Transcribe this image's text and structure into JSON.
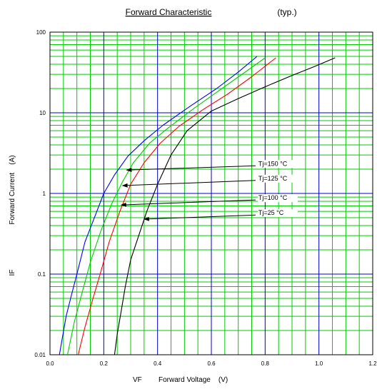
{
  "chart_data": {
    "type": "line",
    "title": "Forward Characteristic",
    "subtitle": "(typ.)",
    "xlabel_symbol": "VF",
    "xlabel": "Forward Voltage    (V)",
    "ylabel_symbol": "IF",
    "ylabel": "Forward Current    (A)",
    "xlim": [
      0.0,
      1.2
    ],
    "ylim": [
      0.01,
      100
    ],
    "yscale": "log",
    "grid": true,
    "x_ticks": [
      "0.0",
      "0.2",
      "0.4",
      "0.6",
      "0.8",
      "1.0",
      "1.2"
    ],
    "y_ticks": [
      "0.01",
      "0.1",
      "1",
      "10",
      "100"
    ],
    "colors": {
      "background": "#ffffff",
      "minor_grid": "#00cc00",
      "major_grid": "#0000cc",
      "arrow": "#000000"
    },
    "series": [
      {
        "name": "Tj=150  °C",
        "color": "#0000ff",
        "x": [
          0.035,
          0.06,
          0.08,
          0.1,
          0.13,
          0.17,
          0.2,
          0.24,
          0.29,
          0.35,
          0.42,
          0.52,
          0.62,
          0.7,
          0.77
        ],
        "y": [
          0.01,
          0.03,
          0.055,
          0.1,
          0.25,
          0.55,
          1.0,
          1.7,
          2.9,
          4.5,
          7.0,
          12,
          20,
          32,
          50
        ]
      },
      {
        "name": "Tj=125  °C",
        "color": "#00cc00",
        "x": [
          0.065,
          0.09,
          0.12,
          0.15,
          0.19,
          0.23,
          0.27,
          0.31,
          0.37,
          0.44,
          0.53,
          0.63,
          0.72,
          0.8
        ],
        "y": [
          0.01,
          0.025,
          0.06,
          0.14,
          0.35,
          0.75,
          1.4,
          2.4,
          4.2,
          6.5,
          11,
          19,
          31,
          48
        ]
      },
      {
        "name": "Tj=100  °C",
        "color": "#ff0000",
        "x": [
          0.105,
          0.13,
          0.16,
          0.19,
          0.22,
          0.26,
          0.3,
          0.35,
          0.41,
          0.48,
          0.57,
          0.66,
          0.75,
          0.84
        ],
        "y": [
          0.01,
          0.022,
          0.05,
          0.11,
          0.25,
          0.6,
          1.3,
          2.4,
          4.2,
          6.8,
          11,
          17,
          28,
          48
        ]
      },
      {
        "name": "Tj=25  °C",
        "color": "#000000",
        "x": [
          0.24,
          0.25,
          0.265,
          0.28,
          0.3,
          0.33,
          0.36,
          0.4,
          0.45,
          0.51,
          0.6,
          0.7,
          0.8,
          0.9,
          0.98,
          1.06
        ],
        "y": [
          0.01,
          0.018,
          0.035,
          0.07,
          0.15,
          0.3,
          0.6,
          1.3,
          3.0,
          6.0,
          10.5,
          15,
          21,
          29,
          37,
          48
        ]
      }
    ],
    "annotations": [
      {
        "text": "Tj=150  °C",
        "label_at": [
          0.775,
          2.2
        ],
        "arrow_to": [
          0.285,
          1.95
        ],
        "bind": "chart_data.series.0.name"
      },
      {
        "text": "Tj=125  °C",
        "label_at": [
          0.775,
          1.45
        ],
        "arrow_to": [
          0.27,
          1.25
        ],
        "bind": "chart_data.series.1.name"
      },
      {
        "text": "Tj=100  °C",
        "label_at": [
          0.775,
          0.83
        ],
        "arrow_to": [
          0.265,
          0.72
        ],
        "bind": "chart_data.series.2.name"
      },
      {
        "text": "Tj=25  °C",
        "label_at": [
          0.775,
          0.54
        ],
        "arrow_to": [
          0.35,
          0.48
        ],
        "bind": "chart_data.series.3.name"
      }
    ]
  }
}
